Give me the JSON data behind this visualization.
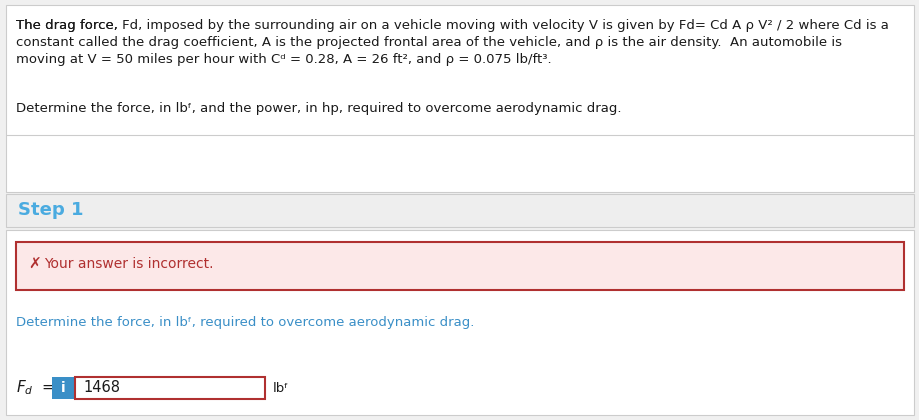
{
  "bg_color": "#f0f0f0",
  "white": "#ffffff",
  "gray_bg": "#eeeeee",
  "border_color": "#cccccc",
  "black_text": "#1a1a1a",
  "blue_text": "#3a8fc7",
  "step_color": "#4aabe0",
  "error_box_bg": "#fce8e8",
  "error_border": "#b03030",
  "error_text": "#b03030",
  "i_btn_color": "#3a8fc7",
  "inp_border": "#b03030",
  "step_label": "Step 1",
  "error_msg": "Your answer is incorrect.",
  "det_text": "Determine the force, in lb",
  "det_text2": ", required to overcome aerodynamic drag.",
  "input_value": "1468",
  "fs": 9.5
}
